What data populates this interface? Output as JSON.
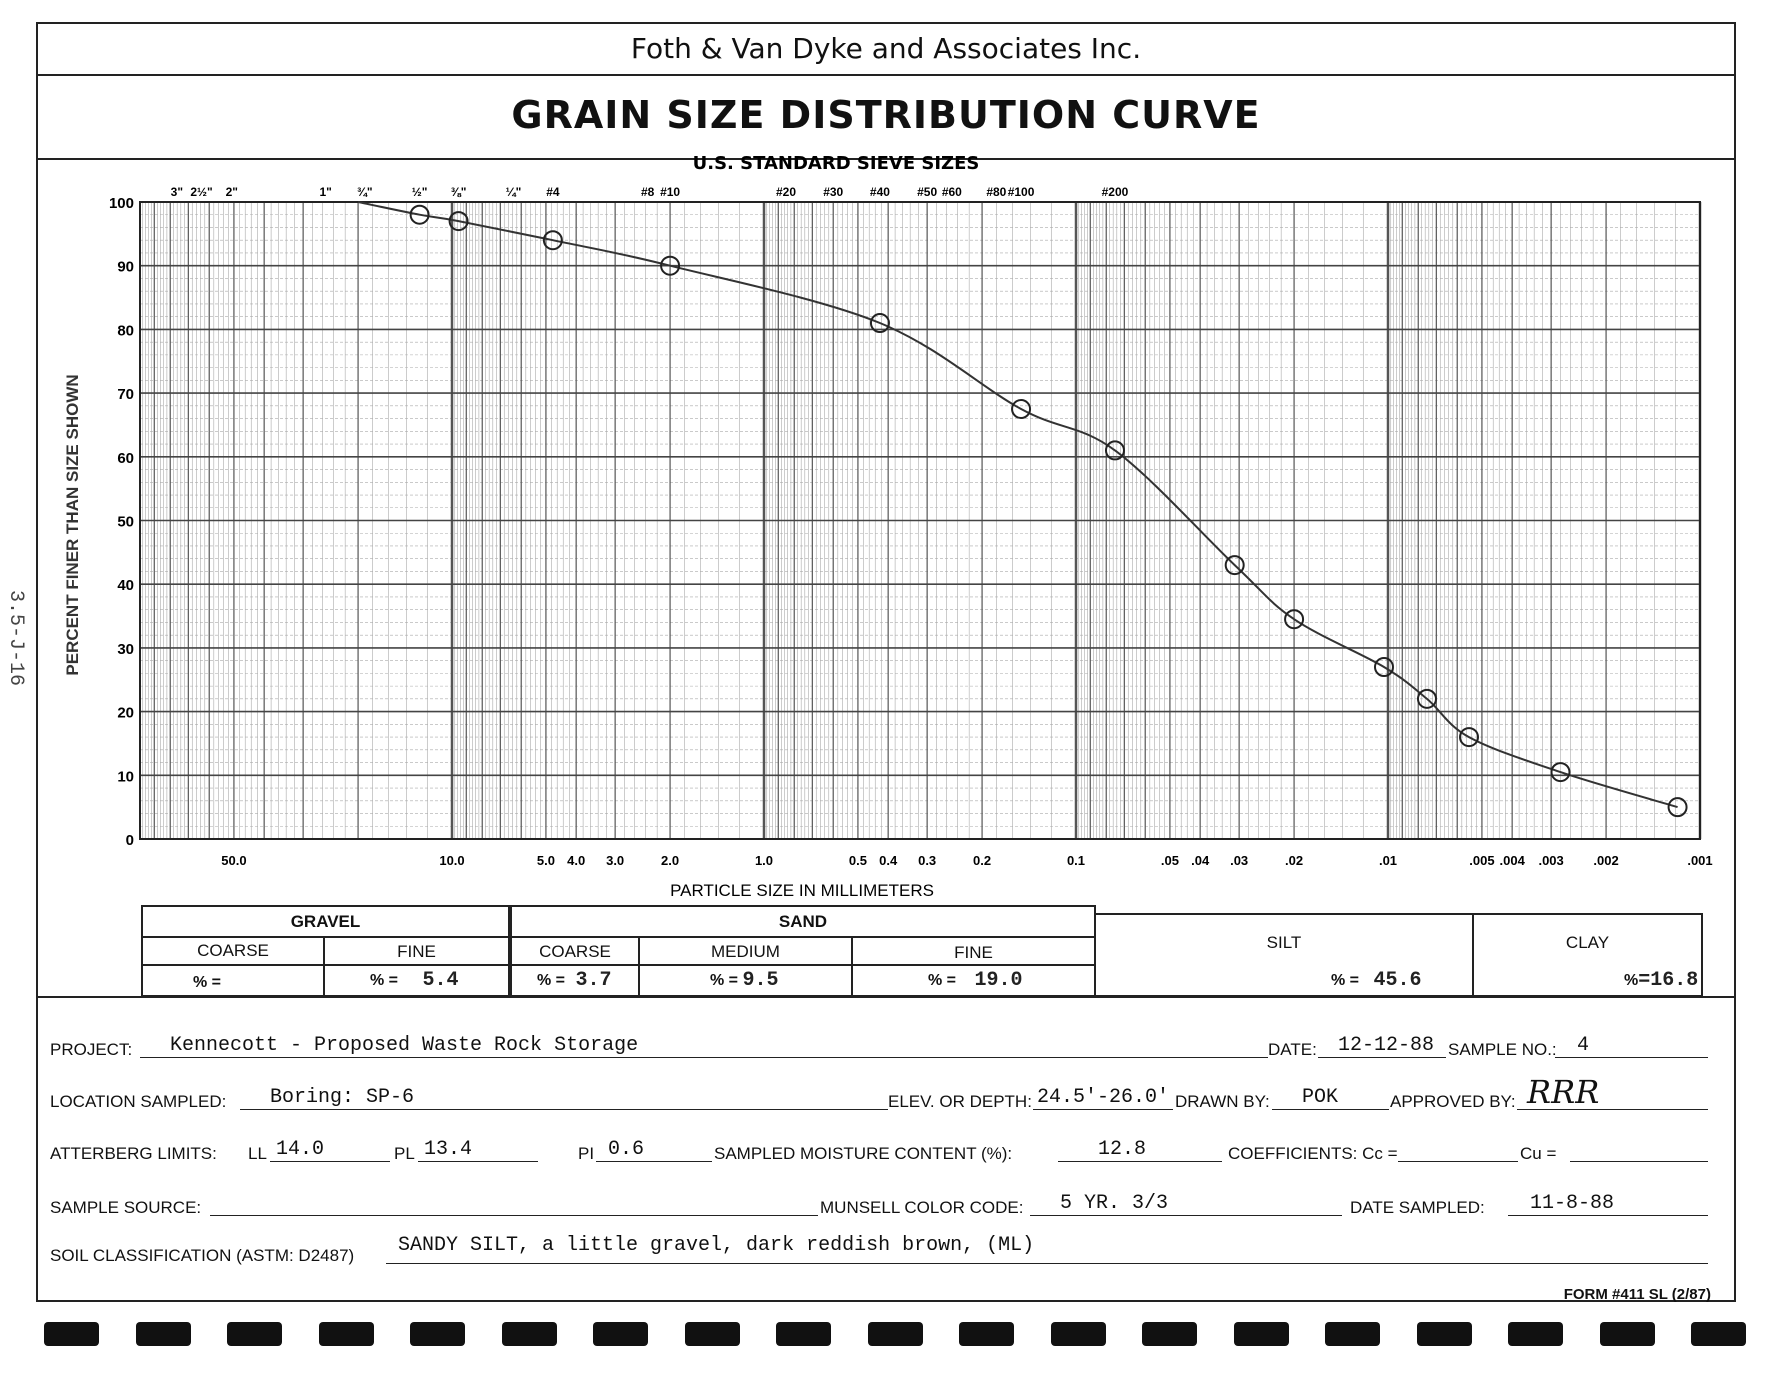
{
  "side_code": "3.5-J-16",
  "company": "Foth & Van Dyke and Associates Inc.",
  "title": "GRAIN SIZE DISTRIBUTION CURVE",
  "chart_data": {
    "type": "line",
    "title": "U.S. STANDARD SIEVE SIZES",
    "xlabel": "PARTICLE SIZE IN MILLIMETERS",
    "ylabel": "PERCENT FINER THAN SIZE SHOWN",
    "x_scale": "log",
    "xlim": [
      100,
      0.001
    ],
    "ylim": [
      0,
      100
    ],
    "grid": true,
    "y_ticks": [
      0,
      10,
      20,
      30,
      40,
      50,
      60,
      70,
      80,
      90,
      100
    ],
    "x_ticks": [
      {
        "label": "50.0",
        "value": 50
      },
      {
        "label": "10.0",
        "value": 10
      },
      {
        "label": "5.0",
        "value": 5
      },
      {
        "label": "4.0",
        "value": 4
      },
      {
        "label": "3.0",
        "value": 3
      },
      {
        "label": "2.0",
        "value": 2
      },
      {
        "label": "1.0",
        "value": 1
      },
      {
        "label": "0.5",
        "value": 0.5
      },
      {
        "label": "0.4",
        "value": 0.4
      },
      {
        "label": "0.3",
        "value": 0.3
      },
      {
        "label": "0.2",
        "value": 0.2
      },
      {
        "label": "0.1",
        "value": 0.1
      },
      {
        "label": ".05",
        "value": 0.05
      },
      {
        "label": ".04",
        "value": 0.04
      },
      {
        "label": ".03",
        "value": 0.03
      },
      {
        "label": ".02",
        "value": 0.02
      },
      {
        "label": ".01",
        "value": 0.01
      },
      {
        "label": ".005",
        "value": 0.005
      },
      {
        "label": ".004",
        "value": 0.004
      },
      {
        "label": ".003",
        "value": 0.003
      },
      {
        "label": ".002",
        "value": 0.002
      },
      {
        "label": ".001",
        "value": 0.001
      }
    ],
    "sieve_ticks": [
      {
        "label": "3\"",
        "value": 76.2
      },
      {
        "label": "2½\"",
        "value": 63.5
      },
      {
        "label": "2\"",
        "value": 50.8
      },
      {
        "label": "1\"",
        "value": 25.4
      },
      {
        "label": "¾\"",
        "value": 19.05
      },
      {
        "label": "½\"",
        "value": 12.7
      },
      {
        "label": "⅜\"",
        "value": 9.525
      },
      {
        "label": "¼\"",
        "value": 6.35
      },
      {
        "label": "#4",
        "value": 4.75
      },
      {
        "label": "#8",
        "value": 2.36
      },
      {
        "label": "#10",
        "value": 2.0
      },
      {
        "label": "#20",
        "value": 0.85
      },
      {
        "label": "#30",
        "value": 0.6
      },
      {
        "label": "#40",
        "value": 0.425
      },
      {
        "label": "#50",
        "value": 0.3
      },
      {
        "label": "#60",
        "value": 0.25
      },
      {
        "label": "#80",
        "value": 0.18
      },
      {
        "label": "#100",
        "value": 0.15
      },
      {
        "label": "#200",
        "value": 0.075
      }
    ],
    "series": [
      {
        "x": [
          12.7,
          9.525,
          4.75,
          2.0,
          0.425,
          0.15,
          0.075,
          0.031,
          0.02,
          0.0103,
          0.0075,
          0.0055,
          0.0028,
          0.00118
        ],
        "y": [
          98,
          97,
          94,
          90,
          81,
          67.5,
          61,
          43,
          34.5,
          27,
          22,
          16,
          10.5,
          5
        ]
      }
    ]
  },
  "classification": {
    "gravel": "GRAVEL",
    "sand": "SAND",
    "coarse": "COARSE",
    "fine": "FINE",
    "medium": "MEDIUM",
    "silt": "SILT",
    "clay": "CLAY",
    "pct_label": "% =",
    "pct_label_clay": "%",
    "gravel_fine_value": "5.4",
    "sand_coarse_value": "3.7",
    "sand_medium_value": "9.5",
    "sand_fine_value": "19.0",
    "silt_value": "45.6",
    "clay_value": "=16.8"
  },
  "form": {
    "project_label": "PROJECT:",
    "project": "Kennecott - Proposed Waste Rock Storage",
    "date_label": "DATE:",
    "date": "12-12-88",
    "sample_no_label": "SAMPLE NO.:",
    "sample_no": "4",
    "location_label": "LOCATION SAMPLED:",
    "location": "Boring: SP-6",
    "elev_label": "ELEV. OR DEPTH:",
    "elev": "24.5'-26.0'",
    "drawn_by_label": "DRAWN BY:",
    "drawn_by": "POK",
    "approved_by_label": "APPROVED BY:",
    "approved_by": "RRR",
    "atterberg_label": "ATTERBERG LIMITS:",
    "ll_label": "LL",
    "ll": "14.0",
    "pl_label": "PL",
    "pl": "13.4",
    "pi_label": "PI",
    "pi": "0.6",
    "moisture_label": "SAMPLED MOISTURE CONTENT (%):",
    "moisture": "12.8",
    "coefficients_label": "COEFFICIENTS: Cc =",
    "cu_label": "Cu =",
    "sample_source_label": "SAMPLE SOURCE:",
    "munsell_label": "MUNSELL COLOR CODE:",
    "munsell": "5 YR. 3/3",
    "date_sampled_label": "DATE SAMPLED:",
    "date_sampled": "11-8-88",
    "soil_class_label": "SOIL CLASSIFICATION (ASTM: D2487)",
    "soil_class": "SANDY SILT,  a little gravel, dark reddish brown, (ML)"
  },
  "form_number": "FORM #411 SL   (2/87)"
}
